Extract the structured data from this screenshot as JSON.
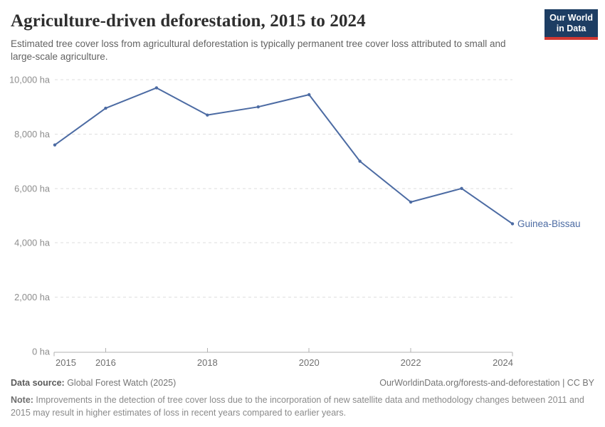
{
  "header": {
    "title": "Agriculture-driven deforestation, 2015 to 2024",
    "subtitle": "Estimated tree cover loss from agricultural deforestation is typically permanent tree cover loss attributed to small and large-scale agriculture.",
    "logo": {
      "line1": "Our World",
      "line2": "in Data",
      "bg_color": "#1d3d63",
      "accent_color": "#d13832"
    }
  },
  "chart_data": {
    "type": "line",
    "title": "Agriculture-driven deforestation, 2015 to 2024",
    "unit": "ha",
    "x": [
      2015,
      2016,
      2017,
      2018,
      2019,
      2020,
      2021,
      2022,
      2023,
      2024
    ],
    "series": [
      {
        "name": "Guinea-Bissau",
        "values": [
          7600,
          8950,
          9700,
          8700,
          9000,
          9450,
          7000,
          5500,
          6000,
          4700
        ],
        "color": "#4c6ba3"
      }
    ],
    "ylim": [
      0,
      10000
    ],
    "yticks": [
      0,
      2000,
      4000,
      6000,
      8000,
      10000
    ],
    "xticks": [
      2015,
      2016,
      2018,
      2020,
      2022,
      2024
    ],
    "grid": "horizontal-dashed",
    "legend_position": "end-of-line-label",
    "entity_label": "Guinea-Bissau"
  },
  "footer": {
    "datasource_label": "Data source:",
    "datasource_value": " Global Forest Watch (2025)",
    "attribution": "OurWorldinData.org/forests-and-deforestation | CC BY",
    "note_label": "Note:",
    "note_text": " Improvements in the detection of tree cover loss due to the incorporation of new satellite data and methodology changes between 2011 and 2015 may result in higher estimates of loss in recent years compared to earlier years."
  }
}
